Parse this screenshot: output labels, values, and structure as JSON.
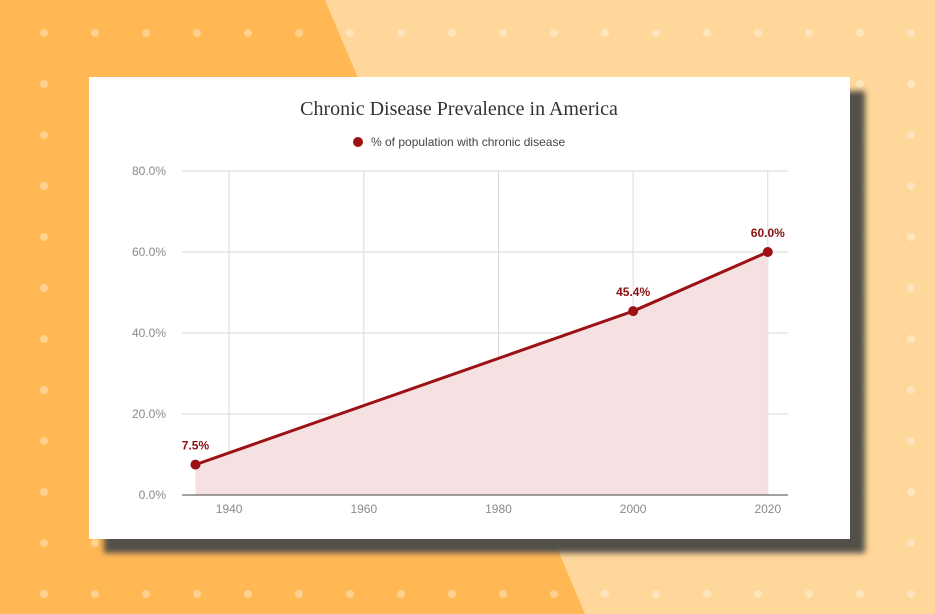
{
  "colors": {
    "background_dark": "#ffb854",
    "background_light": "#ffd79a",
    "series": "#9b1114",
    "area_fill": "#f5e1e1",
    "grid": "#d9d9d9"
  },
  "chart_data": {
    "type": "area",
    "title": "Chronic Disease Prevalence in America",
    "xlabel": "",
    "ylabel": "",
    "xlim": [
      1933,
      2023
    ],
    "ylim": [
      0,
      80
    ],
    "x_ticks": [
      1940,
      1960,
      1980,
      2000,
      2020
    ],
    "x_tick_labels": [
      "1940",
      "1960",
      "1980",
      "2000",
      "2020"
    ],
    "y_ticks": [
      0,
      20,
      40,
      60,
      80
    ],
    "y_tick_labels": [
      "0.0%",
      "20.0%",
      "40.0%",
      "60.0%",
      "80.0%"
    ],
    "grid": true,
    "legend_position": "top-center",
    "series": [
      {
        "name": "% of population with chronic disease",
        "x": [
          1935,
          2000,
          2020
        ],
        "y": [
          7.5,
          45.4,
          60.0
        ],
        "labels": [
          "7.5%",
          "45.4%",
          "60.0%"
        ]
      }
    ]
  }
}
